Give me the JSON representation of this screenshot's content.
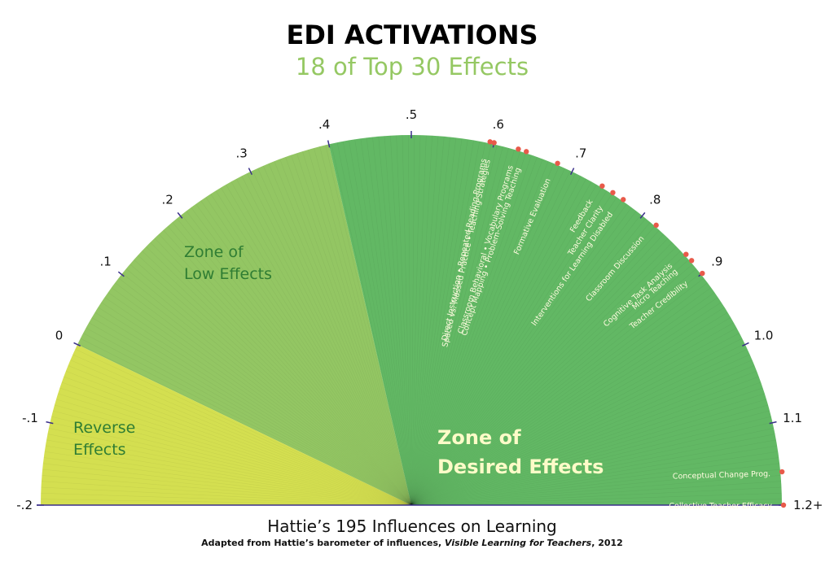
{
  "header": {
    "title": "EDI ACTIVATIONS",
    "subtitle": "18 of Top 30 Effects"
  },
  "footer": {
    "title": "Hattie’s 195 Influences on Learning",
    "source_prefix": "Adapted from Hattie’s barometer of influences, ",
    "source_book": "Visible Learning for Teachers",
    "source_suffix": ", 2012"
  },
  "colors": {
    "reverse": "#d4df50",
    "low": "#93c663",
    "desired": "#62b864",
    "title": "#5cb85c",
    "subtitle": "#95c863",
    "dot": "#e85a4a",
    "axis": "#3a2f8a"
  },
  "chart_data": {
    "type": "gauge",
    "scale_min": -0.2,
    "scale_max": 1.2,
    "ticks": [
      {
        "value": -0.2,
        "label": "-.2"
      },
      {
        "value": -0.1,
        "label": "-.1"
      },
      {
        "value": 0.0,
        "label": "0"
      },
      {
        "value": 0.1,
        "label": ".1"
      },
      {
        "value": 0.2,
        "label": ".2"
      },
      {
        "value": 0.3,
        "label": ".3"
      },
      {
        "value": 0.4,
        "label": ".4"
      },
      {
        "value": 0.5,
        "label": ".5"
      },
      {
        "value": 0.6,
        "label": ".6"
      },
      {
        "value": 0.7,
        "label": ".7"
      },
      {
        "value": 0.8,
        "label": ".8"
      },
      {
        "value": 0.9,
        "label": ".9"
      },
      {
        "value": 1.0,
        "label": "1.0"
      },
      {
        "value": 1.1,
        "label": "1.1"
      },
      {
        "value": 1.2,
        "label": "1.2+"
      }
    ],
    "zones": [
      {
        "name": "Reverse Effects",
        "lines": [
          "Reverse",
          "Effects"
        ],
        "from": -0.2,
        "to": 0.0,
        "color_key": "reverse"
      },
      {
        "name": "Zone of Low Effects",
        "lines": [
          "Zone of",
          "Low Effects"
        ],
        "from": 0.0,
        "to": 0.4,
        "color_key": "low"
      },
      {
        "name": "Zone of Desired Effects",
        "lines": [
          "Zone of",
          "Desired Effects"
        ],
        "from": 0.4,
        "to": 1.2,
        "color_key": "desired"
      }
    ],
    "influences": [
      {
        "label": "Spaced vs. Massed Practice • Teaching Strategies",
        "effect": 0.6
      },
      {
        "label": "Direct Instruction • Repeated Reading Programs",
        "effect": 0.595
      },
      {
        "label": "Classroom Behavioral • Vocabulary Programs",
        "effect": 0.63
      },
      {
        "label": "Concept Mapping • Problem-Solving Teaching",
        "effect": 0.64
      },
      {
        "label": "Formative Evaluation",
        "effect": 0.68
      },
      {
        "label": "Feedback",
        "effect": 0.74
      },
      {
        "label": "Teacher Clarity",
        "effect": 0.755
      },
      {
        "label": "Interventions for Learning Disabled",
        "effect": 0.77
      },
      {
        "label": "Classroom Discussion",
        "effect": 0.82
      },
      {
        "label": "Cognitive Task Analysis",
        "effect": 0.87
      },
      {
        "label": "Micro Teaching",
        "effect": 0.88
      },
      {
        "label": "Teacher Credibility",
        "effect": 0.9
      },
      {
        "label": "Conceptual Change Prog.",
        "effect": 1.16
      },
      {
        "label": "Collective Teacher Efficacy",
        "effect": 1.2
      }
    ]
  }
}
